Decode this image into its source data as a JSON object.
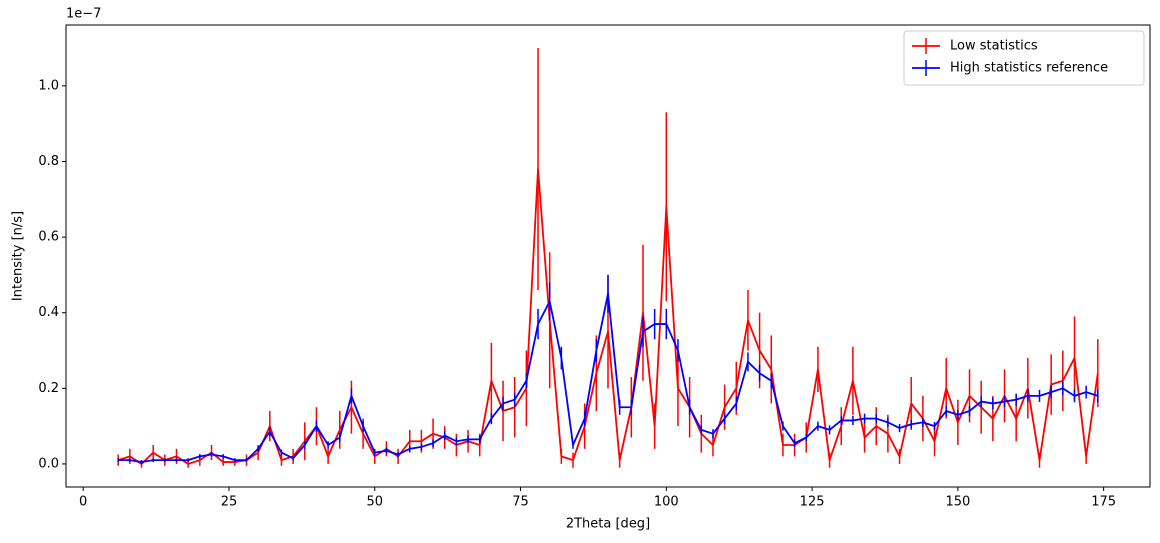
{
  "chart_data": {
    "type": "errorbar-line",
    "xlabel": "2Theta [deg]",
    "ylabel": "Intensity [n/s]",
    "y_offset_text": "1e−7",
    "x": [
      6,
      8,
      10,
      12,
      14,
      16,
      18,
      20,
      22,
      24,
      26,
      28,
      30,
      32,
      34,
      36,
      38,
      40,
      42,
      44,
      46,
      48,
      50,
      52,
      54,
      56,
      58,
      60,
      62,
      64,
      66,
      68,
      70,
      72,
      74,
      76,
      78,
      80,
      82,
      84,
      86,
      88,
      90,
      92,
      94,
      96,
      98,
      100,
      102,
      104,
      106,
      108,
      110,
      112,
      114,
      116,
      118,
      120,
      122,
      124,
      126,
      128,
      130,
      132,
      134,
      136,
      138,
      140,
      142,
      144,
      146,
      148,
      150,
      152,
      154,
      156,
      158,
      160,
      162,
      164,
      166,
      168,
      170,
      172,
      174
    ],
    "series": [
      {
        "name": "Low statistics",
        "color": "#ff0000",
        "values": [
          0.01,
          0.02,
          0.0,
          0.03,
          0.01,
          0.02,
          0.0,
          0.01,
          0.03,
          0.005,
          0.005,
          0.01,
          0.03,
          0.1,
          0.01,
          0.02,
          0.06,
          0.1,
          0.02,
          0.09,
          0.15,
          0.08,
          0.02,
          0.04,
          0.02,
          0.06,
          0.06,
          0.08,
          0.07,
          0.05,
          0.06,
          0.05,
          0.22,
          0.14,
          0.15,
          0.2,
          0.78,
          0.38,
          0.02,
          0.01,
          0.1,
          0.24,
          0.35,
          0.01,
          0.15,
          0.4,
          0.1,
          0.68,
          0.2,
          0.15,
          0.08,
          0.05,
          0.15,
          0.2,
          0.38,
          0.3,
          0.25,
          0.05,
          0.05,
          0.07,
          0.25,
          0.01,
          0.1,
          0.22,
          0.07,
          0.1,
          0.08,
          0.02,
          0.16,
          0.12,
          0.06,
          0.2,
          0.11,
          0.18,
          0.15,
          0.12,
          0.18,
          0.12,
          0.2,
          0.01,
          0.21,
          0.22,
          0.28,
          0.02,
          0.24
        ],
        "errors": [
          0.015,
          0.02,
          0.01,
          0.02,
          0.015,
          0.02,
          0.01,
          0.015,
          0.02,
          0.01,
          0.01,
          0.015,
          0.02,
          0.04,
          0.015,
          0.02,
          0.05,
          0.05,
          0.02,
          0.05,
          0.07,
          0.04,
          0.02,
          0.02,
          0.02,
          0.03,
          0.03,
          0.04,
          0.03,
          0.03,
          0.03,
          0.03,
          0.1,
          0.08,
          0.08,
          0.1,
          0.32,
          0.18,
          0.02,
          0.02,
          0.06,
          0.1,
          0.15,
          0.02,
          0.08,
          0.18,
          0.06,
          0.25,
          0.1,
          0.08,
          0.05,
          0.03,
          0.06,
          0.07,
          0.08,
          0.1,
          0.09,
          0.03,
          0.03,
          0.04,
          0.06,
          0.02,
          0.05,
          0.09,
          0.04,
          0.05,
          0.05,
          0.02,
          0.07,
          0.06,
          0.04,
          0.08,
          0.06,
          0.07,
          0.07,
          0.06,
          0.07,
          0.06,
          0.08,
          0.02,
          0.08,
          0.08,
          0.11,
          0.02,
          0.09
        ]
      },
      {
        "name": "High statistics reference",
        "color": "#0000ff",
        "values": [
          0.01,
          0.01,
          0.005,
          0.01,
          0.01,
          0.01,
          0.01,
          0.02,
          0.025,
          0.02,
          0.01,
          0.01,
          0.04,
          0.085,
          0.03,
          0.015,
          0.05,
          0.1,
          0.05,
          0.07,
          0.18,
          0.1,
          0.03,
          0.035,
          0.025,
          0.04,
          0.045,
          0.055,
          0.075,
          0.06,
          0.065,
          0.065,
          0.12,
          0.16,
          0.17,
          0.22,
          0.37,
          0.43,
          0.28,
          0.05,
          0.12,
          0.3,
          0.45,
          0.15,
          0.15,
          0.35,
          0.37,
          0.37,
          0.3,
          0.15,
          0.09,
          0.08,
          0.12,
          0.16,
          0.27,
          0.24,
          0.22,
          0.1,
          0.055,
          0.07,
          0.1,
          0.09,
          0.115,
          0.115,
          0.12,
          0.12,
          0.11,
          0.095,
          0.105,
          0.11,
          0.1,
          0.14,
          0.13,
          0.14,
          0.165,
          0.16,
          0.165,
          0.17,
          0.18,
          0.18,
          0.19,
          0.2,
          0.18,
          0.19,
          0.18
        ],
        "errors": [
          0.005,
          0.005,
          0.005,
          0.005,
          0.005,
          0.005,
          0.005,
          0.006,
          0.006,
          0.006,
          0.005,
          0.005,
          0.008,
          0.012,
          0.008,
          0.006,
          0.01,
          0.015,
          0.01,
          0.012,
          0.02,
          0.015,
          0.008,
          0.008,
          0.007,
          0.008,
          0.009,
          0.01,
          0.012,
          0.01,
          0.01,
          0.01,
          0.015,
          0.018,
          0.018,
          0.02,
          0.04,
          0.05,
          0.03,
          0.01,
          0.02,
          0.03,
          0.05,
          0.02,
          0.02,
          0.04,
          0.04,
          0.04,
          0.03,
          0.02,
          0.012,
          0.012,
          0.015,
          0.018,
          0.025,
          0.022,
          0.02,
          0.012,
          0.01,
          0.01,
          0.012,
          0.012,
          0.012,
          0.012,
          0.013,
          0.013,
          0.012,
          0.011,
          0.012,
          0.012,
          0.011,
          0.014,
          0.013,
          0.014,
          0.015,
          0.015,
          0.015,
          0.016,
          0.016,
          0.016,
          0.017,
          0.018,
          0.017,
          0.017,
          0.017
        ]
      }
    ],
    "xlim": [
      -2.95,
      182.95
    ],
    "ylim": [
      -0.061,
      1.161
    ],
    "xticks": [
      0,
      25,
      50,
      75,
      100,
      125,
      150,
      175
    ],
    "yticks": [
      {
        "value": 0,
        "label": "0.0"
      },
      0.2,
      0.4,
      0.6,
      0.8,
      {
        "value": 1,
        "label": "1.0"
      }
    ],
    "legend": "upper right",
    "grid": false
  }
}
